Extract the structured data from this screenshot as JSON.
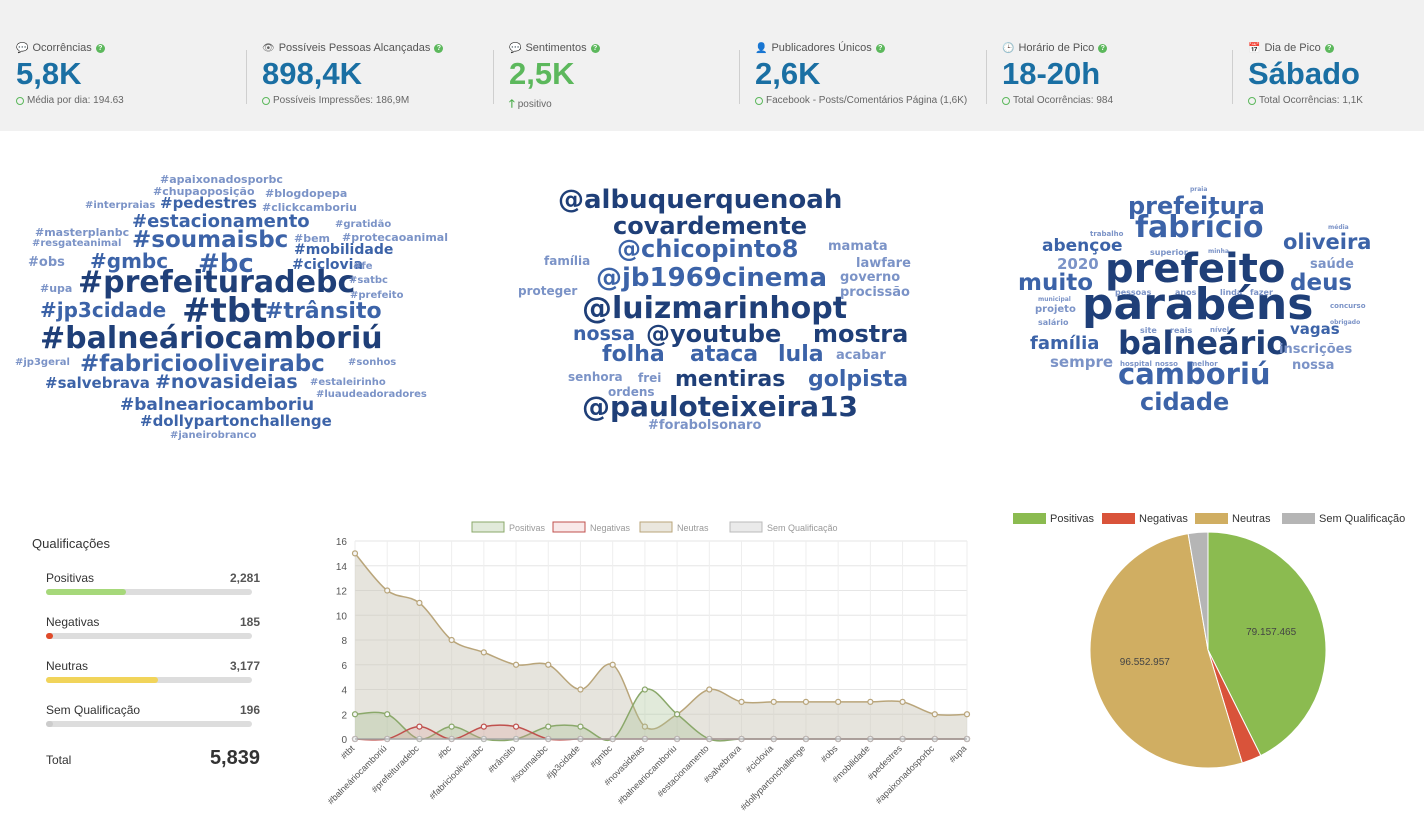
{
  "kpis": [
    {
      "icon": "comment-icon",
      "label": "Ocorrências",
      "value": "5,8K",
      "sub_icon": "ring",
      "sub": "Média por dia: 194.63"
    },
    {
      "icon": "eye-icon",
      "label": "Possíveis Pessoas Alcançadas",
      "value": "898,4K",
      "sub_icon": "ring",
      "sub": "Possíveis Impressões: 186,9M"
    },
    {
      "icon": "comment-icon",
      "label": "Sentimentos",
      "value": "2,5K",
      "sub_icon": "arrow-up",
      "sub": "positivo"
    },
    {
      "icon": "user-icon",
      "label": "Publicadores Únicos",
      "value": "2,6K",
      "sub_icon": "ring",
      "sub": "Facebook - Posts/Comentários Página (1,6K)"
    },
    {
      "icon": "clock-icon",
      "label": "Horário de Pico",
      "value": "18-20h",
      "sub_icon": "ring",
      "sub": "Total Ocorrências: 984"
    },
    {
      "icon": "calendar-icon",
      "label": "Dia de Pico",
      "value": "Sábado",
      "sub_icon": "ring",
      "sub": "Total Ocorrências: 1,1K"
    }
  ],
  "colors": {
    "kpi_blue": "#1a6fa3",
    "positive_green": "#5cb85c",
    "cloud_dark": "#1f3f78",
    "cloud_mid": "#3c63a8",
    "cloud_light": "#7b93c7"
  },
  "hashtag_cloud": [
    {
      "t": "#apaixonadosporbc",
      "s": 11,
      "c": "l"
    },
    {
      "t": "#chupaoposição",
      "s": 11,
      "c": "l"
    },
    {
      "t": "#blogdopepa",
      "s": 11,
      "c": "l"
    },
    {
      "t": "#interpraias",
      "s": 10,
      "c": "l"
    },
    {
      "t": "#pedestres",
      "s": 15,
      "c": "m"
    },
    {
      "t": "#clickcamboriu",
      "s": 11,
      "c": "l"
    },
    {
      "t": "#estacionamento",
      "s": 18,
      "c": "m"
    },
    {
      "t": "#masterplanbc",
      "s": 11,
      "c": "l"
    },
    {
      "t": "#gratidão",
      "s": 10,
      "c": "l"
    },
    {
      "t": "#resgateanimal",
      "s": 10,
      "c": "l"
    },
    {
      "t": "#soumaisbc",
      "s": 23,
      "c": "m"
    },
    {
      "t": "#bem",
      "s": 11,
      "c": "l"
    },
    {
      "t": "#protecaoanimal",
      "s": 11,
      "c": "l"
    },
    {
      "t": "#mobilidade",
      "s": 14,
      "c": "m"
    },
    {
      "t": "#obs",
      "s": 13,
      "c": "l"
    },
    {
      "t": "#gmbc",
      "s": 20,
      "c": "m"
    },
    {
      "t": "#bc",
      "s": 26,
      "c": "m"
    },
    {
      "t": "#ciclovia",
      "s": 14,
      "c": "m"
    },
    {
      "t": "#fe",
      "s": 10,
      "c": "l"
    },
    {
      "t": "#prefeituradebc",
      "s": 30,
      "c": "d"
    },
    {
      "t": "#satbc",
      "s": 10,
      "c": "l"
    },
    {
      "t": "#upa",
      "s": 11,
      "c": "l"
    },
    {
      "t": "#prefeito",
      "s": 10,
      "c": "l"
    },
    {
      "t": "#jp3cidade",
      "s": 20,
      "c": "m"
    },
    {
      "t": "#tbt",
      "s": 34,
      "c": "d"
    },
    {
      "t": "#trânsito",
      "s": 22,
      "c": "m"
    },
    {
      "t": "#balneáriocamboriú",
      "s": 30,
      "c": "d"
    },
    {
      "t": "#jp3geral",
      "s": 10,
      "c": "l"
    },
    {
      "t": "#fabriciooliveirabc",
      "s": 23,
      "c": "m"
    },
    {
      "t": "#sonhos",
      "s": 10,
      "c": "l"
    },
    {
      "t": "#salvebrava",
      "s": 15,
      "c": "m"
    },
    {
      "t": "#novasideias",
      "s": 19,
      "c": "m"
    },
    {
      "t": "#estaleirinho",
      "s": 10,
      "c": "l"
    },
    {
      "t": "#luaudeadoradores",
      "s": 10,
      "c": "l"
    },
    {
      "t": "#balneariocamboriu",
      "s": 17,
      "c": "m"
    },
    {
      "t": "#dollypartonchallenge",
      "s": 15,
      "c": "m"
    },
    {
      "t": "#janeirobranco",
      "s": 10,
      "c": "l"
    }
  ],
  "mention_cloud": [
    {
      "t": "@albuquerquenoah",
      "s": 26,
      "c": "d"
    },
    {
      "t": "covardemente",
      "s": 24,
      "c": "d"
    },
    {
      "t": "@chicopinto8",
      "s": 24,
      "c": "m"
    },
    {
      "t": "mamata",
      "s": 13,
      "c": "l"
    },
    {
      "t": "família",
      "s": 12,
      "c": "l"
    },
    {
      "t": "@jb1969cinema",
      "s": 26,
      "c": "m"
    },
    {
      "t": "lawfare",
      "s": 13,
      "c": "l"
    },
    {
      "t": "governo",
      "s": 13,
      "c": "l"
    },
    {
      "t": "proteger",
      "s": 12,
      "c": "l"
    },
    {
      "t": "procissão",
      "s": 13,
      "c": "l"
    },
    {
      "t": "@luizmarinhopt",
      "s": 30,
      "c": "d"
    },
    {
      "t": "nossa",
      "s": 19,
      "c": "m"
    },
    {
      "t": "@youtube",
      "s": 24,
      "c": "d"
    },
    {
      "t": "mostra",
      "s": 24,
      "c": "d"
    },
    {
      "t": "folha",
      "s": 22,
      "c": "m"
    },
    {
      "t": "ataca",
      "s": 22,
      "c": "m"
    },
    {
      "t": "lula",
      "s": 22,
      "c": "m"
    },
    {
      "t": "acabar",
      "s": 13,
      "c": "l"
    },
    {
      "t": "senhora",
      "s": 12,
      "c": "l"
    },
    {
      "t": "frei",
      "s": 12,
      "c": "l"
    },
    {
      "t": "mentiras",
      "s": 22,
      "c": "d"
    },
    {
      "t": "golpista",
      "s": 22,
      "c": "m"
    },
    {
      "t": "ordens",
      "s": 12,
      "c": "l"
    },
    {
      "t": "@pauloteixeira13",
      "s": 28,
      "c": "d"
    },
    {
      "t": "#forabolsonaro",
      "s": 13,
      "c": "l"
    }
  ],
  "word_cloud": [
    {
      "t": "praia",
      "s": 6,
      "c": "l"
    },
    {
      "t": "prefeitura",
      "s": 24,
      "c": "m"
    },
    {
      "t": "trabalho",
      "s": 7,
      "c": "l"
    },
    {
      "t": "fabrício",
      "s": 30,
      "c": "m"
    },
    {
      "t": "média",
      "s": 6,
      "c": "l"
    },
    {
      "t": "abençoe",
      "s": 17,
      "c": "m"
    },
    {
      "t": "superior",
      "s": 8,
      "c": "l"
    },
    {
      "t": "minha",
      "s": 6,
      "c": "l"
    },
    {
      "t": "oliveira",
      "s": 21,
      "c": "m"
    },
    {
      "t": "2020",
      "s": 15,
      "c": "l"
    },
    {
      "t": "prefeito",
      "s": 40,
      "c": "d"
    },
    {
      "t": "saúde",
      "s": 13,
      "c": "l"
    },
    {
      "t": "muito",
      "s": 23,
      "c": "m"
    },
    {
      "t": "deus",
      "s": 23,
      "c": "m"
    },
    {
      "t": "pessoas",
      "s": 8,
      "c": "l"
    },
    {
      "t": "anos",
      "s": 8,
      "c": "l"
    },
    {
      "t": "linda",
      "s": 8,
      "c": "l"
    },
    {
      "t": "fazer",
      "s": 8,
      "c": "l"
    },
    {
      "t": "municipal",
      "s": 6,
      "c": "l"
    },
    {
      "t": "concurso",
      "s": 7,
      "c": "l"
    },
    {
      "t": "projeto",
      "s": 10,
      "c": "l"
    },
    {
      "t": "parabéns",
      "s": 44,
      "c": "d"
    },
    {
      "t": "salário",
      "s": 8,
      "c": "l"
    },
    {
      "t": "obrigado",
      "s": 6,
      "c": "l"
    },
    {
      "t": "site",
      "s": 8,
      "c": "l"
    },
    {
      "t": "reais",
      "s": 8,
      "c": "l"
    },
    {
      "t": "nível",
      "s": 7,
      "c": "l"
    },
    {
      "t": "vagas",
      "s": 15,
      "c": "m"
    },
    {
      "t": "família",
      "s": 18,
      "c": "m"
    },
    {
      "t": "balneário",
      "s": 32,
      "c": "d"
    },
    {
      "t": "inscrições",
      "s": 13,
      "c": "l"
    },
    {
      "t": "sempre",
      "s": 15,
      "c": "l"
    },
    {
      "t": "hospital",
      "s": 7,
      "c": "l"
    },
    {
      "t": "nosso",
      "s": 7,
      "c": "l"
    },
    {
      "t": "melhor",
      "s": 7,
      "c": "l"
    },
    {
      "t": "nossa",
      "s": 13,
      "c": "l"
    },
    {
      "t": "camboriú",
      "s": 29,
      "c": "m"
    },
    {
      "t": "cidade",
      "s": 24,
      "c": "m"
    }
  ],
  "qualifications": {
    "title": "Qualificações",
    "items": [
      {
        "label": "Positivas",
        "value": "2,281",
        "fraction": 0.39,
        "color": "#a6d87a"
      },
      {
        "label": "Negativas",
        "value": "185",
        "fraction": 0.032,
        "color": "#e04b2a"
      },
      {
        "label": "Neutras",
        "value": "3,177",
        "fraction": 0.544,
        "color": "#f1d45a"
      },
      {
        "label": "Sem Qualificação",
        "value": "196",
        "fraction": 0.034,
        "color": "#cccccc"
      }
    ],
    "total_label": "Total",
    "total_value": "5,839"
  },
  "chart_data": [
    {
      "type": "area",
      "legend": [
        "Positivas",
        "Negativas",
        "Neutras",
        "Sem Qualificação"
      ],
      "categories": [
        "#tbt",
        "#balneáriocamboriú",
        "#prefeituradebc",
        "#bc",
        "#fabriciooliveirabc",
        "#trânsito",
        "#soumaisbc",
        "#jp3cidade",
        "#gmbc",
        "#novasideias",
        "#balneariocamboriu",
        "#estacionamento",
        "#salvebrava",
        "#ciclovia",
        "#dollypartonchallenge",
        "#obs",
        "#mobilidade",
        "#pedestres",
        "#apaixonadosporbc",
        "#upa"
      ],
      "series": [
        {
          "name": "Positivas",
          "color": "#8aa86a",
          "values": [
            2,
            2,
            0,
            1,
            0,
            0,
            1,
            1,
            0,
            4,
            2,
            0,
            0,
            0,
            0,
            0,
            0,
            0,
            0,
            0
          ]
        },
        {
          "name": "Negativas",
          "color": "#c0504d",
          "values": [
            0,
            0,
            1,
            0,
            1,
            1,
            0,
            0,
            0,
            0,
            0,
            0,
            0,
            0,
            0,
            0,
            0,
            0,
            0,
            0
          ]
        },
        {
          "name": "Neutras",
          "color": "#b9a57a",
          "values": [
            15,
            12,
            11,
            8,
            7,
            6,
            6,
            4,
            6,
            1,
            2,
            4,
            3,
            3,
            3,
            3,
            3,
            3,
            2,
            2
          ]
        },
        {
          "name": "Sem Qualificação",
          "color": "#bbbbbb",
          "values": [
            0,
            0,
            0,
            0,
            0,
            0,
            0,
            0,
            0,
            0,
            0,
            0,
            0,
            0,
            0,
            0,
            0,
            0,
            0,
            0
          ]
        }
      ],
      "ylim": [
        0,
        16
      ],
      "yticks": [
        0,
        2,
        4,
        6,
        8,
        10,
        12,
        14,
        16
      ],
      "grid": true,
      "legend_position": "top"
    },
    {
      "type": "pie",
      "legend": [
        "Positivas",
        "Negativas",
        "Neutras",
        "Sem Qualificação"
      ],
      "legend_position": "top",
      "slices": [
        {
          "label": "Positivas",
          "value": 79157465,
          "display": "79.157.465",
          "color": "#8bbb50"
        },
        {
          "label": "Negativas",
          "value": 5000000,
          "display": "",
          "color": "#d9533a"
        },
        {
          "label": "Neutras",
          "value": 96552957,
          "display": "96.552.957",
          "color": "#d0ae62"
        },
        {
          "label": "Sem Qualificação",
          "value": 5000000,
          "display": "",
          "color": "#b5b5b5"
        }
      ]
    }
  ]
}
